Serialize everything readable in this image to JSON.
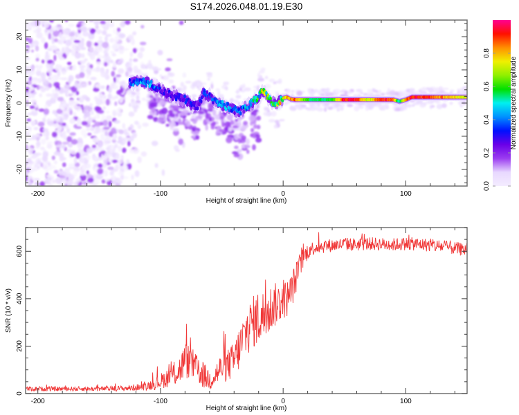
{
  "chart_data": [
    {
      "id": "spectrogram",
      "type": "heatmap",
      "title": "S174.2026.048.01.19.E30",
      "xlabel": "Height of straight line (km)",
      "ylabel": "Frequency (Hz)",
      "xlim": [
        -210,
        150
      ],
      "ylim": [
        -25,
        25
      ],
      "xticks": [
        -200,
        -100,
        0,
        100
      ],
      "xtick_labels": [
        "-200",
        "-100",
        "0",
        "100"
      ],
      "x_minor_step": 20,
      "yticks": [
        -20,
        -10,
        0,
        10,
        20
      ],
      "ytick_labels": [
        "-20",
        "-10",
        "0",
        "10",
        "20"
      ],
      "y_minor_step": 2,
      "grid": false,
      "colorbar": {
        "label": "Normalized spectral amplitude",
        "range": [
          0.0,
          1.0
        ],
        "ticks": [
          0.0,
          0.2,
          0.4,
          0.6,
          0.8
        ],
        "tick_labels": [
          "0.0",
          "0.2",
          "0.4",
          "0.6",
          "0.8"
        ],
        "colormap": [
          "#ffffff",
          "#e8d8ff",
          "#9b3cf0",
          "#6a00e8",
          "#0010ff",
          "#0090ff",
          "#00f0f0",
          "#00e000",
          "#90f000",
          "#f0f000",
          "#ff9000",
          "#ff1000",
          "#ff0090"
        ]
      },
      "ridge": {
        "description": "dominant frequency track vs height",
        "x": [
          -125,
          -118,
          -110,
          -100,
          -95,
          -88,
          -80,
          -75,
          -70,
          -65,
          -60,
          -55,
          -50,
          -45,
          -40,
          -35,
          -30,
          -25,
          -20,
          -17,
          -14,
          -10,
          -6,
          -3,
          0,
          3,
          6,
          10,
          20,
          30,
          40,
          50,
          60,
          70,
          80,
          90,
          95,
          100,
          105,
          110,
          120,
          130,
          140,
          150
        ],
        "y": [
          6,
          6.5,
          6,
          4,
          3,
          2,
          1,
          -0.5,
          -1,
          3,
          2,
          0.5,
          -0.5,
          -1,
          -2,
          -2.5,
          -1,
          0,
          2,
          3.5,
          2.5,
          0.5,
          -0.5,
          0.5,
          1.5,
          1.8,
          1.2,
          1,
          1,
          1,
          1,
          1,
          1,
          1,
          1,
          1,
          0.5,
          1,
          1.8,
          1.8,
          1.8,
          1.8,
          1.8,
          1.8
        ],
        "amplitude": [
          0.35,
          0.4,
          0.45,
          0.3,
          0.3,
          0.3,
          0.3,
          0.3,
          0.25,
          0.35,
          0.3,
          0.4,
          0.45,
          0.45,
          0.35,
          0.4,
          0.45,
          0.5,
          0.55,
          0.75,
          0.6,
          0.55,
          0.6,
          0.7,
          0.75,
          0.8,
          0.85,
          0.9,
          0.6,
          0.55,
          0.6,
          0.95,
          0.95,
          0.7,
          0.95,
          0.9,
          0.5,
          0.85,
          0.95,
          0.95,
          0.9,
          0.85,
          0.8,
          0.75
        ]
      },
      "noise_region_x": [
        -210,
        -110
      ]
    },
    {
      "id": "snr",
      "type": "line",
      "xlabel": "Height of straight line (km)",
      "ylabel": "SNR (10 * v/v)",
      "xlim": [
        -210,
        150
      ],
      "ylim": [
        0,
        700
      ],
      "xticks": [
        -200,
        -100,
        0,
        100
      ],
      "xtick_labels": [
        "-200",
        "-100",
        "0",
        "100"
      ],
      "x_minor_step": 20,
      "yticks": [
        0,
        200,
        400,
        600
      ],
      "ytick_labels": [
        "0",
        "200",
        "400",
        "600"
      ],
      "y_minor_step": 50,
      "grid": false,
      "color": "#ee2222",
      "series": [
        {
          "name": "SNR",
          "x": [
            -210,
            -190,
            -170,
            -150,
            -130,
            -115,
            -105,
            -95,
            -85,
            -80,
            -75,
            -70,
            -65,
            -60,
            -55,
            -50,
            -45,
            -40,
            -35,
            -30,
            -25,
            -20,
            -15,
            -10,
            -5,
            0,
            5,
            10,
            15,
            20,
            25,
            30,
            40,
            50,
            60,
            70,
            80,
            90,
            100,
            110,
            120,
            130,
            140,
            150
          ],
          "mean": [
            20,
            20,
            20,
            20,
            22,
            28,
            40,
            65,
            95,
            140,
            130,
            100,
            75,
            60,
            80,
            110,
            120,
            140,
            200,
            260,
            300,
            320,
            330,
            360,
            380,
            390,
            410,
            480,
            560,
            600,
            615,
            620,
            625,
            630,
            628,
            632,
            630,
            628,
            632,
            630,
            625,
            620,
            612,
            605
          ],
          "noise_amplitude": [
            10,
            10,
            10,
            10,
            12,
            15,
            25,
            40,
            60,
            80,
            70,
            60,
            55,
            50,
            55,
            65,
            70,
            80,
            100,
            110,
            110,
            120,
            110,
            100,
            90,
            80,
            80,
            70,
            50,
            35,
            30,
            30,
            28,
            28,
            28,
            28,
            28,
            28,
            28,
            28,
            28,
            28,
            28,
            28
          ]
        }
      ]
    }
  ]
}
